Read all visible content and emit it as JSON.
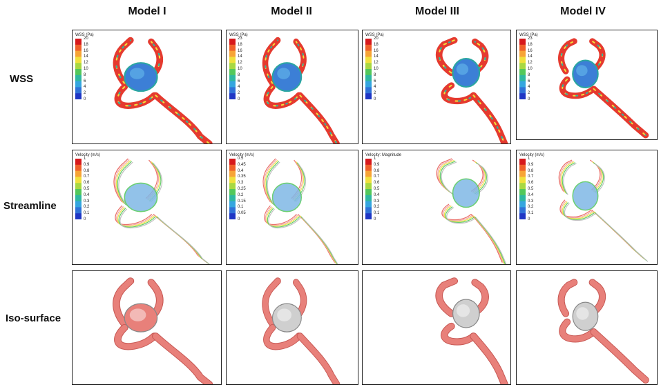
{
  "columns": [
    "Model I",
    "Model II",
    "Model III",
    "Model IV"
  ],
  "rows": [
    "WSS",
    "Streamline",
    "Iso-surface"
  ],
  "legends": {
    "wss": [
      {
        "title": "WSS (Pa)",
        "ticks": [
          "20",
          "18",
          "16",
          "14",
          "12",
          "10",
          "8",
          "6",
          "4",
          "2",
          "0"
        ]
      },
      {
        "title": "WSS (Pa)",
        "ticks": [
          "23",
          "18",
          "16",
          "14",
          "12",
          "10",
          "8",
          "6",
          "4",
          "2",
          "0"
        ]
      },
      {
        "title": "WSS (Pa)",
        "ticks": [
          "20",
          "18",
          "16",
          "14",
          "12",
          "10",
          "8",
          "6",
          "4",
          "2",
          "0"
        ]
      },
      {
        "title": "WSS (Pa)",
        "ticks": [
          "23",
          "18",
          "16",
          "14",
          "12",
          "10",
          "8",
          "6",
          "4",
          "2",
          "0"
        ]
      }
    ],
    "streamline": [
      {
        "title": "Velocity (m/s)",
        "ticks": [
          "1",
          "0.9",
          "0.8",
          "0.7",
          "0.6",
          "0.5",
          "0.4",
          "0.3",
          "0.2",
          "0.1",
          "0"
        ]
      },
      {
        "title": "Velocity (m/s)",
        "ticks": [
          "0.5",
          "0.45",
          "0.4",
          "0.35",
          "0.3",
          "0.25",
          "0.2",
          "0.15",
          "0.1",
          "0.05",
          "0"
        ]
      },
      {
        "title": "Velocity: Magnitude",
        "ticks": [
          "1",
          "0.9",
          "0.8",
          "0.7",
          "0.6",
          "0.5",
          "0.4",
          "0.3",
          "0.2",
          "0.1",
          "0"
        ]
      },
      {
        "title": "Velocity (m/s)",
        "ticks": [
          "1",
          "0.9",
          "0.8",
          "0.7",
          "0.6",
          "0.5",
          "0.4",
          "0.3",
          "0.2",
          "0.1",
          "0"
        ]
      }
    ]
  },
  "colors": {
    "scale": [
      "#d7191c",
      "#f0602a",
      "#f7a436",
      "#f1e03c",
      "#a8d843",
      "#53c85a",
      "#2fb8a0",
      "#35a6df",
      "#2f72d8",
      "#1f36c4"
    ],
    "vessel_red": "#e53a2f",
    "sac_blue": "#3c7fd6",
    "iso_pink": "#e8807a",
    "iso_gray": "#cfcfcf"
  }
}
